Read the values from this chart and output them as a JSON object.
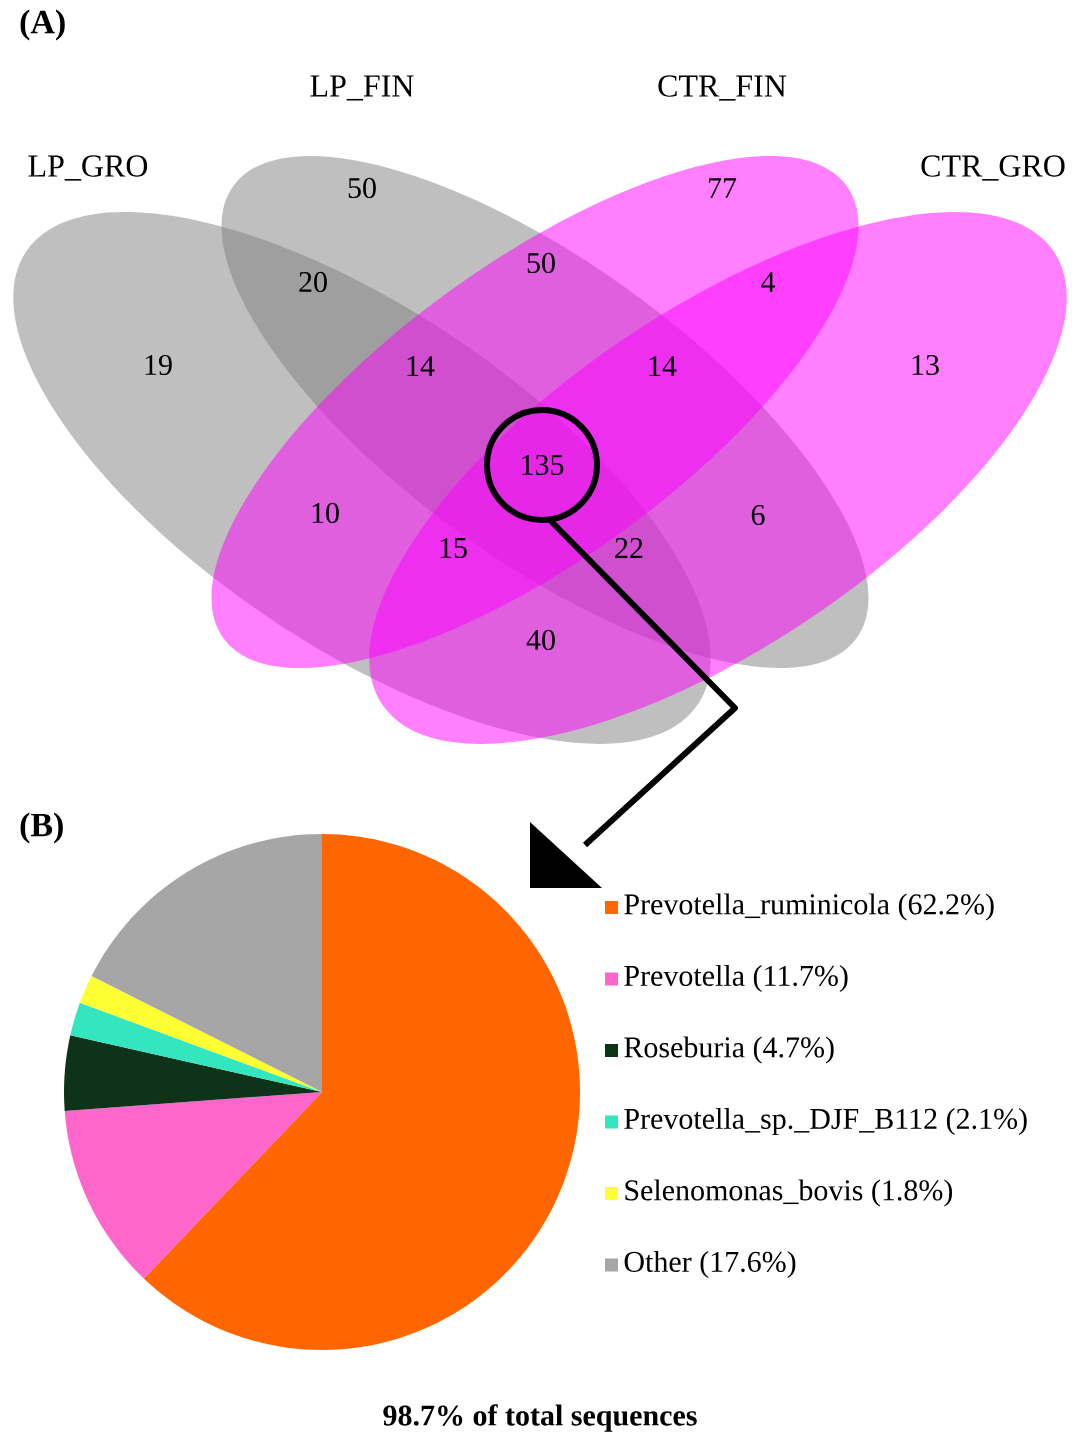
{
  "chart_data": [
    {
      "type": "other",
      "title": "(A)",
      "categories": [
        "LP_GRO",
        "LP_FIN",
        "CTR_FIN",
        "CTR_GRO"
      ],
      "colors": [
        "#808080",
        "#808080",
        "#ff00ff",
        "#ff00ff"
      ],
      "annotations": [
        "19",
        "50",
        "20",
        "14",
        "10",
        "15",
        "135",
        "40",
        "22",
        "6",
        "14",
        "4",
        "50",
        "77",
        "13"
      ]
    },
    {
      "type": "pie",
      "title": "(B)",
      "categories": [
        "Prevotella_ruminicola (62.2%)",
        "Prevotella (11.7%)",
        "Roseburia (4.7%)",
        "Prevotella_sp._DJF_B112 (2.1%)",
        "Selenomonas_bovis (1.8%)",
        "Other (17.6%)"
      ],
      "values": [
        62.2,
        11.7,
        4.7,
        2.1,
        1.8,
        17.6
      ],
      "colors": [
        "#ff6600",
        "#ff66cc",
        "#0d3318",
        "#33e6c0",
        "#ffff33",
        "#a6a6a6"
      ],
      "legend": "right",
      "annotations": [
        "98.7% of total sequences"
      ]
    }
  ]
}
